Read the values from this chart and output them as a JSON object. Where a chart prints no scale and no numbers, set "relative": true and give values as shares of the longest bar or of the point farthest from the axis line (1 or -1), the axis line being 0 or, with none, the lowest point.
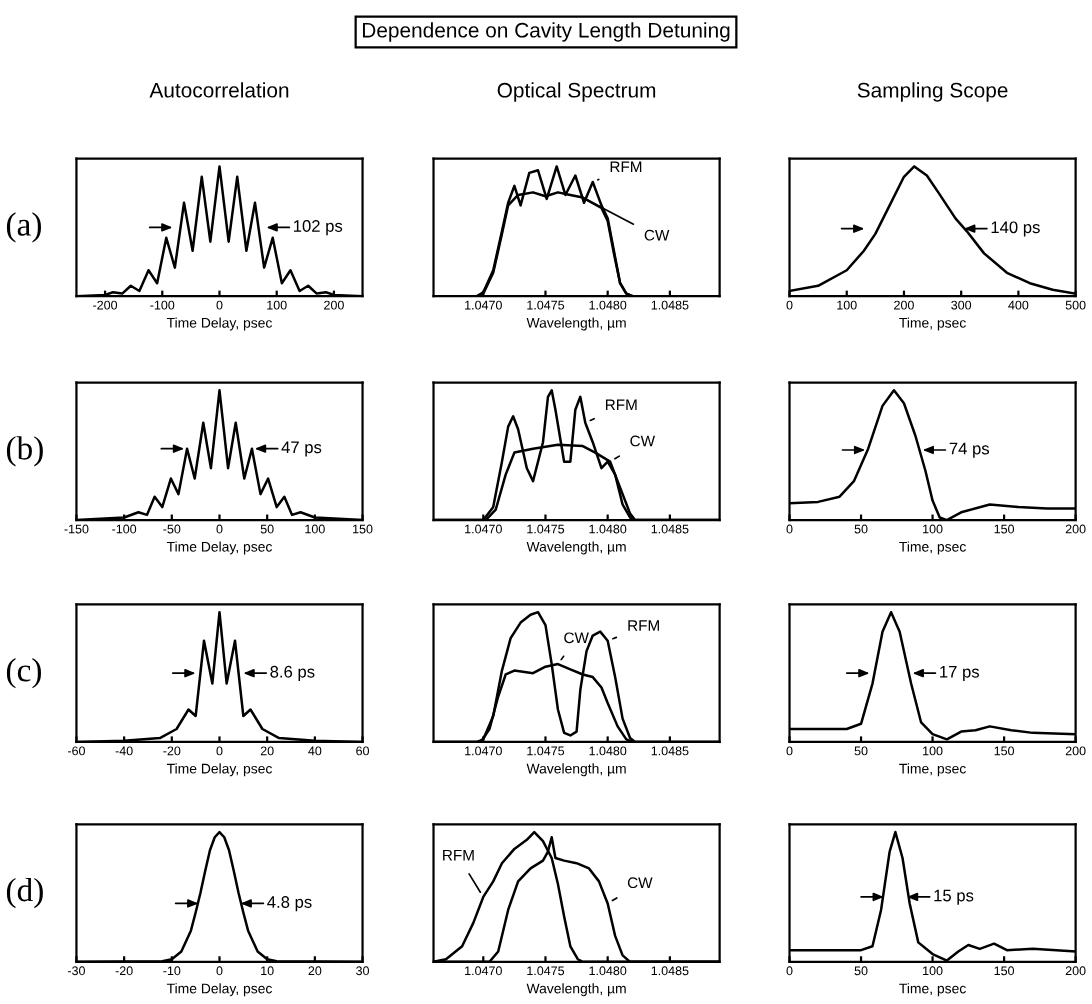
{
  "chart_data": [
    {
      "type": "line",
      "relative": true,
      "subtitle": "Autocorrelation",
      "xlabel": "Time Delay, psec",
      "xlim": [
        -250,
        250
      ],
      "xticks": [
        -200,
        -100,
        0,
        100,
        200
      ],
      "tick_labels": "x",
      "series": [
        {
          "color": "#000000",
          "x": [
            -250,
            -200,
            -186,
            -170,
            -155,
            -140,
            -124,
            -109,
            -93,
            -78,
            -62,
            -47,
            -31,
            -16,
            0,
            16,
            31,
            47,
            62,
            78,
            93,
            109,
            124,
            140,
            155,
            170,
            186,
            200,
            250
          ],
          "values": [
            0,
            0.01,
            0.03,
            0.02,
            0.08,
            0.04,
            0.2,
            0.1,
            0.45,
            0.22,
            0.72,
            0.35,
            0.92,
            0.42,
            1,
            0.42,
            0.92,
            0.35,
            0.72,
            0.22,
            0.45,
            0.1,
            0.2,
            0.04,
            0.08,
            0.02,
            0.03,
            0.01,
            0
          ]
        }
      ],
      "annotations": [
        "(a)",
        {
          "text": "102 ps",
          "x": 82,
          "y": 0.53
        }
      ]
    },
    {
      "type": "line",
      "relative": true,
      "title": "Dependence on Cavity Length Detuning",
      "subtitle": "Optical Spectrum",
      "xlabel": "Wavelength, µm",
      "xlim": [
        1.0466,
        1.0489
      ],
      "xticks": [
        {
          "value": 1.047,
          "label": "1.0470"
        },
        {
          "value": 1.0475,
          "label": "1.0475"
        },
        {
          "value": 1.048,
          "label": "1.0480"
        },
        {
          "value": 1.0485,
          "label": "1.0485"
        }
      ],
      "tick_labels": "x",
      "series": [
        {
          "name": "RFM",
          "color": "#000000",
          "x": [
            1.0466,
            1.04695,
            1.047,
            1.04708,
            1.04715,
            1.0472,
            1.04725,
            1.0473,
            1.04737,
            1.04744,
            1.04751,
            1.04759,
            1.04766,
            1.04774,
            1.04781,
            1.04788,
            1.04795,
            1.048,
            1.04805,
            1.0481,
            1.04815,
            1.0482,
            1.0489
          ],
          "values": [
            0,
            0,
            0.03,
            0.2,
            0.5,
            0.72,
            0.85,
            0.7,
            0.95,
            0.97,
            0.75,
            1.0,
            0.78,
            0.93,
            0.72,
            0.88,
            0.7,
            0.6,
            0.35,
            0.1,
            0.02,
            0,
            0
          ]
        },
        {
          "name": "CW",
          "color": "#000000",
          "x": [
            1.0466,
            1.04695,
            1.047,
            1.04708,
            1.04715,
            1.0472,
            1.04728,
            1.0474,
            1.0475,
            1.0476,
            1.0477,
            1.0478,
            1.04795,
            1.048,
            1.04805,
            1.0481,
            1.04815,
            1.0482,
            1.0489
          ],
          "values": [
            0,
            0,
            0.02,
            0.18,
            0.48,
            0.7,
            0.78,
            0.8,
            0.77,
            0.8,
            0.78,
            0.76,
            0.68,
            0.58,
            0.33,
            0.1,
            0.02,
            0,
            0
          ]
        }
      ]
    },
    {
      "type": "line",
      "relative": true,
      "subtitle": "Sampling Scope",
      "xlabel": "Time, psec",
      "xlim": [
        0,
        500
      ],
      "xticks": [
        0,
        100,
        200,
        300,
        400,
        500
      ],
      "tick_labels": "x",
      "series": [
        {
          "color": "#000000",
          "x": [
            0,
            50,
            100,
            130,
            150,
            175,
            200,
            218,
            240,
            260,
            290,
            310,
            340,
            380,
            420,
            460,
            500
          ],
          "values": [
            0.04,
            0.08,
            0.2,
            0.35,
            0.48,
            0.7,
            0.92,
            1.0,
            0.93,
            0.8,
            0.6,
            0.5,
            0.33,
            0.18,
            0.1,
            0.05,
            0.02
          ]
        }
      ],
      "annotations": [
        {
          "text": "140 ps",
          "x": 305,
          "y": 0.52
        }
      ]
    },
    {
      "type": "line",
      "relative": true,
      "xlabel": "Time Delay, psec",
      "xlim": [
        -150,
        150
      ],
      "xticks": [
        -150,
        -100,
        -50,
        0,
        50,
        100,
        150
      ],
      "tick_labels": "x",
      "series": [
        {
          "color": "#000000",
          "x": [
            -150,
            -100,
            -85,
            -76,
            -68,
            -60,
            -51,
            -43,
            -34,
            -26,
            -17,
            -9,
            0,
            9,
            17,
            26,
            34,
            43,
            51,
            60,
            68,
            76,
            85,
            100,
            150
          ],
          "values": [
            0,
            0.02,
            0.06,
            0.04,
            0.18,
            0.1,
            0.32,
            0.2,
            0.55,
            0.32,
            0.75,
            0.4,
            1,
            0.4,
            0.75,
            0.32,
            0.55,
            0.2,
            0.32,
            0.1,
            0.18,
            0.04,
            0.06,
            0.02,
            0
          ]
        }
      ],
      "annotations": [
        "(b)",
        {
          "text": "47 ps",
          "x": 37,
          "y": 0.55
        }
      ]
    },
    {
      "type": "line",
      "relative": true,
      "xlabel": "Wavelength, µm",
      "xlim": [
        1.0466,
        1.0489
      ],
      "xticks": [
        {
          "value": 1.047,
          "label": "1.0470"
        },
        {
          "value": 1.0475,
          "label": "1.0475"
        },
        {
          "value": 1.048,
          "label": "1.0480"
        },
        {
          "value": 1.0485,
          "label": "1.0485"
        }
      ],
      "tick_labels": "x",
      "series": [
        {
          "name": "RFM",
          "color": "#000000",
          "x": [
            1.0466,
            1.047,
            1.04708,
            1.04715,
            1.0472,
            1.04724,
            1.04728,
            1.04735,
            1.0474,
            1.04748,
            1.04752,
            1.04755,
            1.04758,
            1.04765,
            1.0477,
            1.04774,
            1.04778,
            1.04782,
            1.04788,
            1.04795,
            1.048,
            1.04806,
            1.04812,
            1.04818,
            1.0482,
            1.0489
          ],
          "values": [
            0,
            0,
            0.1,
            0.45,
            0.72,
            0.8,
            0.7,
            0.4,
            0.3,
            0.6,
            0.95,
            1.0,
            0.85,
            0.45,
            0.45,
            0.85,
            0.95,
            0.75,
            0.6,
            0.4,
            0.45,
            0.35,
            0.12,
            0.02,
            0,
            0
          ]
        },
        {
          "name": "CW",
          "color": "#000000",
          "x": [
            1.0466,
            1.04702,
            1.0471,
            1.04718,
            1.04725,
            1.0474,
            1.0476,
            1.0478,
            1.0479,
            1.04802,
            1.0481,
            1.04818,
            1.04822,
            1.0489
          ],
          "values": [
            0,
            0,
            0.08,
            0.35,
            0.52,
            0.55,
            0.58,
            0.57,
            0.52,
            0.45,
            0.25,
            0.05,
            0,
            0
          ]
        }
      ]
    },
    {
      "type": "line",
      "relative": true,
      "xlabel": "Time, psec",
      "xlim": [
        0,
        200
      ],
      "xticks": [
        0,
        50,
        100,
        150,
        200
      ],
      "tick_labels": "x",
      "series": [
        {
          "color": "#000000",
          "x": [
            0,
            20,
            35,
            45,
            55,
            65,
            73,
            80,
            88,
            95,
            100,
            105,
            110,
            120,
            140,
            160,
            180,
            200
          ],
          "values": [
            0.13,
            0.14,
            0.18,
            0.3,
            0.55,
            0.88,
            1.0,
            0.9,
            0.65,
            0.38,
            0.15,
            0.02,
            0.0,
            0.06,
            0.12,
            0.1,
            0.09,
            0.09
          ]
        }
      ],
      "annotations": [
        {
          "text": "74 ps",
          "x": 93,
          "y": 0.54
        }
      ]
    },
    {
      "type": "line",
      "relative": true,
      "xlabel": "Time Delay, psec",
      "xlim": [
        -60,
        60
      ],
      "xticks": [
        -60,
        -40,
        -20,
        0,
        20,
        40,
        60
      ],
      "tick_labels": "x",
      "series": [
        {
          "color": "#000000",
          "x": [
            -60,
            -40,
            -25,
            -18,
            -13,
            -10,
            -6.5,
            -3,
            0,
            3,
            6.5,
            10,
            13,
            18,
            25,
            40,
            60
          ],
          "values": [
            0,
            0.01,
            0.03,
            0.1,
            0.25,
            0.2,
            0.78,
            0.45,
            1,
            0.45,
            0.78,
            0.2,
            0.25,
            0.1,
            0.03,
            0.01,
            0
          ]
        }
      ],
      "annotations": [
        "(c)",
        {
          "text": "8.6 ps",
          "x": 10,
          "y": 0.53
        }
      ]
    },
    {
      "type": "line",
      "relative": true,
      "xlabel": "Wavelength, µm",
      "xlim": [
        1.0466,
        1.0489
      ],
      "xticks": [
        {
          "value": 1.047,
          "label": "1.0470"
        },
        {
          "value": 1.0475,
          "label": "1.0475"
        },
        {
          "value": 1.048,
          "label": "1.0480"
        },
        {
          "value": 1.0485,
          "label": "1.0485"
        }
      ],
      "tick_labels": "x",
      "series": [
        {
          "name": "RFM",
          "color": "#000000",
          "x": [
            1.0466,
            1.04695,
            1.047,
            1.04708,
            1.04715,
            1.04722,
            1.0473,
            1.04738,
            1.04744,
            1.0475,
            1.04755,
            1.0476,
            1.04765,
            1.0477,
            1.04775,
            1.04778,
            1.04783,
            1.04788,
            1.04794,
            1.048,
            1.04806,
            1.04812,
            1.04818,
            1.04822,
            1.0489
          ],
          "values": [
            0,
            0,
            0.02,
            0.2,
            0.55,
            0.8,
            0.92,
            0.98,
            1.0,
            0.9,
            0.6,
            0.25,
            0.07,
            0.05,
            0.08,
            0.4,
            0.7,
            0.82,
            0.85,
            0.78,
            0.5,
            0.18,
            0.03,
            0,
            0
          ]
        },
        {
          "name": "CW",
          "color": "#000000",
          "x": [
            1.0466,
            1.04698,
            1.04705,
            1.04712,
            1.04718,
            1.04725,
            1.0474,
            1.0475,
            1.0476,
            1.0477,
            1.0478,
            1.04788,
            1.04795,
            1.048,
            1.04808,
            1.04815,
            1.0482,
            1.0489
          ],
          "values": [
            0,
            0,
            0.1,
            0.35,
            0.52,
            0.55,
            0.53,
            0.58,
            0.6,
            0.56,
            0.52,
            0.5,
            0.42,
            0.3,
            0.12,
            0.02,
            0,
            0
          ]
        }
      ]
    },
    {
      "type": "line",
      "relative": true,
      "xlabel": "Time, psec",
      "xlim": [
        0,
        200
      ],
      "xticks": [
        0,
        50,
        100,
        150,
        200
      ],
      "tick_labels": "x",
      "series": [
        {
          "color": "#000000",
          "x": [
            0,
            40,
            50,
            58,
            65,
            71,
            77,
            85,
            92,
            100,
            110,
            120,
            130,
            140,
            155,
            170,
            200
          ],
          "values": [
            0.1,
            0.1,
            0.14,
            0.45,
            0.85,
            1.0,
            0.85,
            0.45,
            0.15,
            0.06,
            0.02,
            0.08,
            0.09,
            0.12,
            0.09,
            0.07,
            0.06
          ]
        }
      ],
      "annotations": [
        {
          "text": "17 ps",
          "x": 86,
          "y": 0.53
        }
      ]
    },
    {
      "type": "line",
      "relative": true,
      "xlabel": "Time Delay, psec",
      "xlim": [
        -30,
        30
      ],
      "xticks": [
        -30,
        -20,
        -10,
        0,
        10,
        20,
        30
      ],
      "tick_labels": "x",
      "series": [
        {
          "color": "#000000",
          "x": [
            -30,
            -12,
            -10,
            -8,
            -6,
            -5,
            -4,
            -3,
            -2,
            -1,
            0,
            1,
            2,
            3,
            4,
            5,
            6,
            8,
            10,
            12,
            30
          ],
          "values": [
            0,
            0.004,
            0.02,
            0.08,
            0.24,
            0.38,
            0.53,
            0.7,
            0.86,
            0.96,
            1,
            0.96,
            0.86,
            0.7,
            0.53,
            0.38,
            0.24,
            0.08,
            0.02,
            0.004,
            0
          ]
        }
      ],
      "annotations": [
        "(d)",
        {
          "text": "4.8 ps",
          "x": 4.4,
          "y": 0.45
        }
      ]
    },
    {
      "type": "line",
      "relative": true,
      "xlabel": "Wavelength, µm",
      "xlim": [
        1.0466,
        1.0489
      ],
      "xticks": [
        {
          "value": 1.047,
          "label": "1.0470"
        },
        {
          "value": 1.0475,
          "label": "1.0475"
        },
        {
          "value": 1.048,
          "label": "1.0480"
        },
        {
          "value": 1.0485,
          "label": "1.0485"
        }
      ],
      "tick_labels": "x",
      "series": [
        {
          "name": "RFM",
          "color": "#000000",
          "x": [
            1.0466,
            1.0467,
            1.04683,
            1.04692,
            1.047,
            1.04708,
            1.04715,
            1.04725,
            1.04735,
            1.04741,
            1.04748,
            1.04755,
            1.0476,
            1.04765,
            1.0477,
            1.04776,
            1.0478,
            1.0489
          ],
          "values": [
            0,
            0.02,
            0.12,
            0.3,
            0.5,
            0.62,
            0.76,
            0.87,
            0.94,
            1.0,
            0.93,
            0.8,
            0.6,
            0.35,
            0.12,
            0.02,
            0,
            0
          ]
        },
        {
          "name": "CW",
          "color": "#000000",
          "x": [
            1.0466,
            1.04705,
            1.04712,
            1.0472,
            1.04728,
            1.04738,
            1.04748,
            1.04752,
            1.04755,
            1.04758,
            1.04765,
            1.04775,
            1.04785,
            1.04793,
            1.048,
            1.04806,
            1.04812,
            1.04818,
            1.0489
          ],
          "values": [
            0,
            0,
            0.08,
            0.4,
            0.62,
            0.72,
            0.78,
            0.85,
            0.96,
            0.8,
            0.78,
            0.76,
            0.72,
            0.62,
            0.45,
            0.2,
            0.05,
            0,
            0
          ]
        }
      ]
    },
    {
      "type": "line",
      "relative": true,
      "xlabel": "Time, psec",
      "xlim": [
        0,
        200
      ],
      "xticks": [
        0,
        50,
        100,
        150,
        200
      ],
      "tick_labels": "x",
      "series": [
        {
          "color": "#000000",
          "x": [
            0,
            50,
            58,
            64,
            70,
            74,
            79,
            84,
            90,
            100,
            110,
            118,
            125,
            133,
            143,
            152,
            170,
            200
          ],
          "values": [
            0.09,
            0.09,
            0.12,
            0.4,
            0.85,
            1.0,
            0.8,
            0.45,
            0.15,
            0.06,
            0.01,
            0.08,
            0.13,
            0.1,
            0.14,
            0.09,
            0.1,
            0.08
          ]
        }
      ],
      "annotations": [
        {
          "text": "15 ps",
          "x": 82,
          "y": 0.5
        }
      ]
    }
  ]
}
